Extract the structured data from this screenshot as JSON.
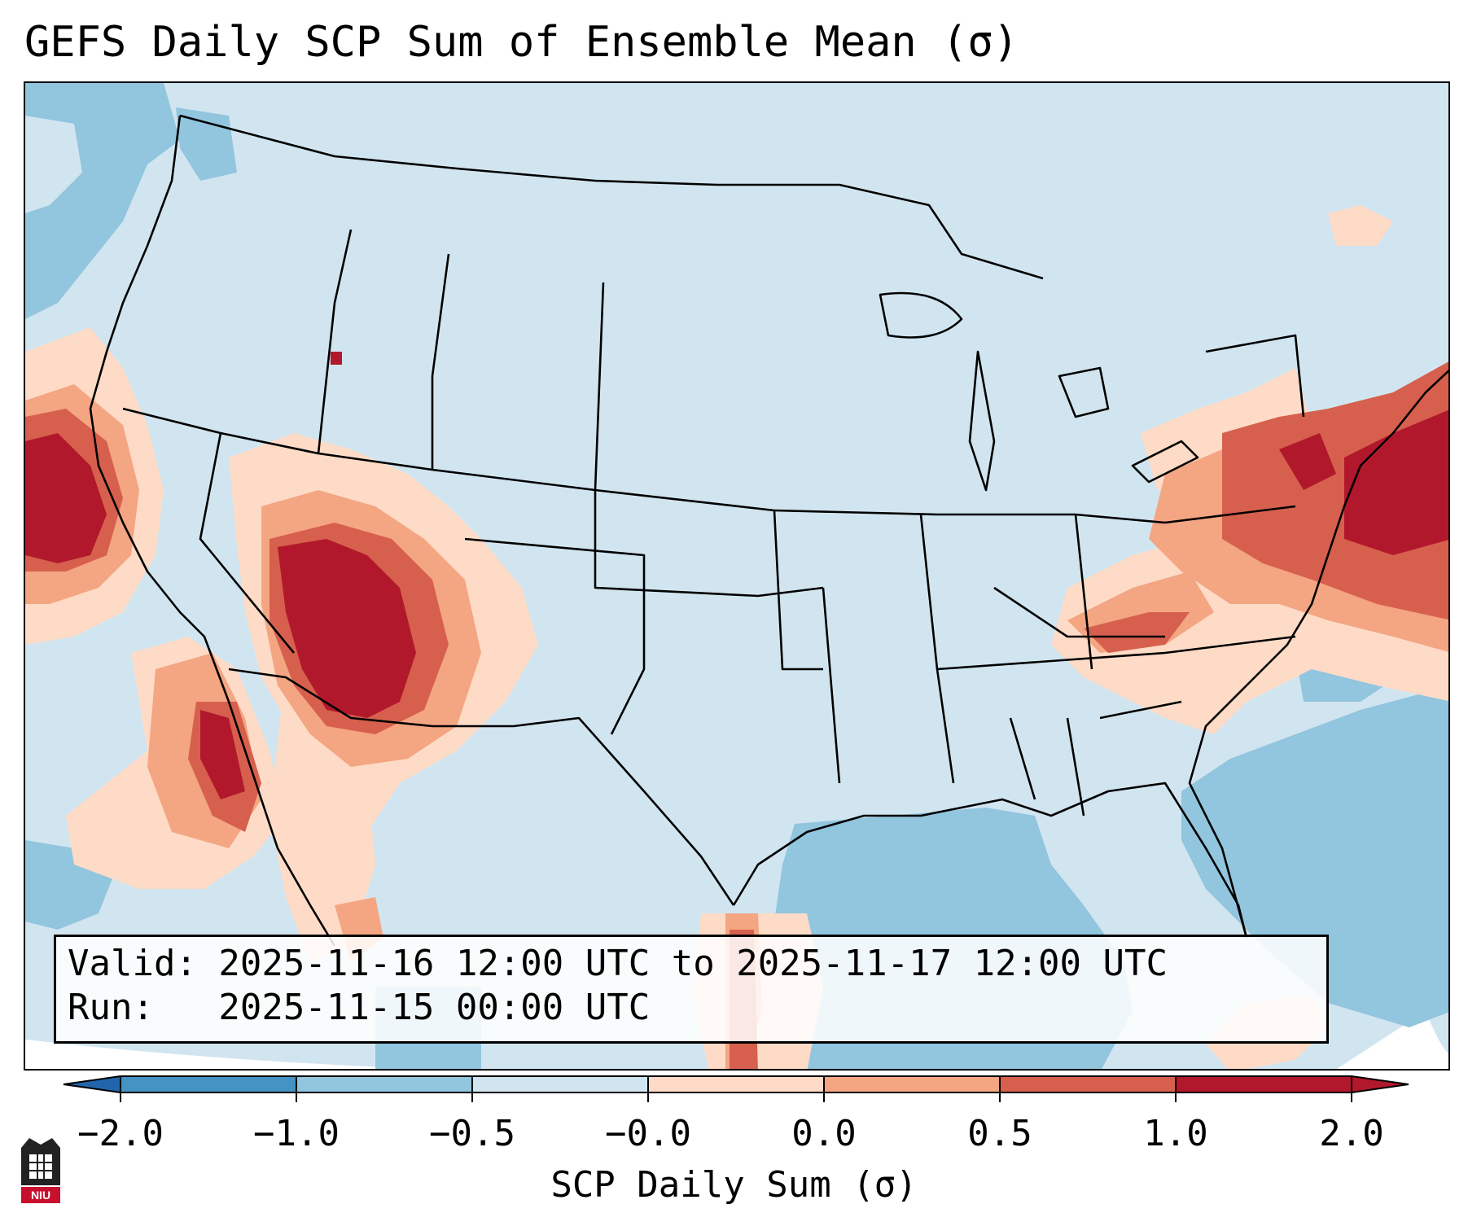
{
  "title": "GEFS Daily SCP Sum of Ensemble Mean (σ)",
  "info": {
    "valid_line": "Valid: 2025-11-16 12:00 UTC to 2025-11-17 12:00 UTC",
    "run_line": "Run:   2025-11-15 00:00 UTC"
  },
  "colorbar": {
    "label": "SCP Daily Sum (σ)",
    "ticks": [
      "−2.0",
      "−1.0",
      "−0.5",
      "−0.0",
      "0.0",
      "0.5",
      "1.0",
      "2.0"
    ],
    "bin_colors": [
      "#2166ac",
      "#4393c3",
      "#92c5de",
      "#d1e5f0",
      "#fddbc7",
      "#f4a582",
      "#d6604d",
      "#b2182b"
    ],
    "under_color": "#2166ac",
    "over_color": "#b2182b"
  },
  "map": {
    "region": "Contiguous United States",
    "background_color": "#d1e5f0",
    "highlight_areas": [
      {
        "name": "Northern California coast",
        "category": "above 2.0"
      },
      {
        "name": "Arizona / Southern Nevada",
        "category": "above 2.0"
      },
      {
        "name": "Southern California / Baja",
        "category": "1.0 to 2.0"
      },
      {
        "name": "Mid-Atlantic / New England coast",
        "category": "1.0 to 2.0"
      },
      {
        "name": "Virginia / North Carolina",
        "category": "0.5 to 1.0"
      },
      {
        "name": "Gulf of Mexico",
        "category": "-1.0 to -0.5"
      },
      {
        "name": "Western Atlantic",
        "category": "-1.0 to -0.5"
      },
      {
        "name": "Pacific Northwest offshore",
        "category": "-1.0 to -0.5"
      }
    ]
  },
  "logo": {
    "text": "NIU",
    "primary_color": "#c8102e",
    "secondary_color": "#222222"
  }
}
